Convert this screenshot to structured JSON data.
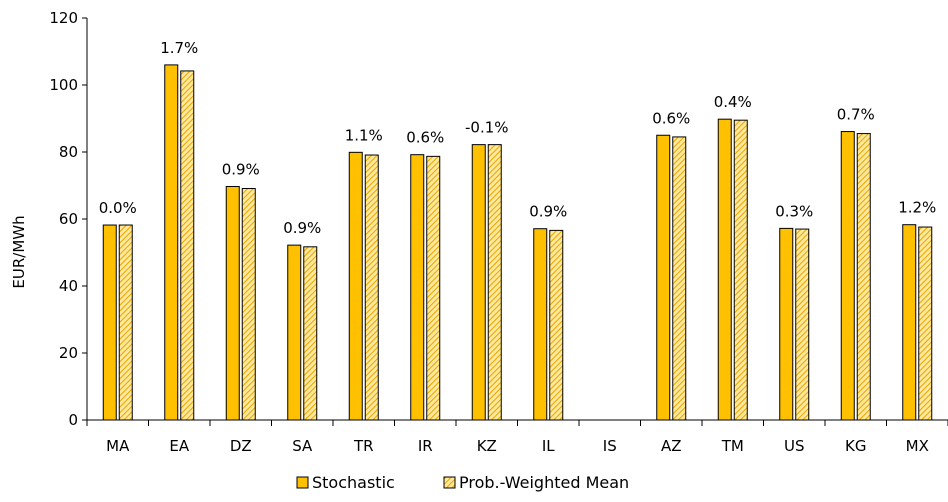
{
  "chart_data": {
    "type": "bar",
    "title": "",
    "xlabel": "",
    "ylabel": "EUR/MWh",
    "ylim": [
      0,
      120
    ],
    "yticks": [
      0,
      20,
      40,
      60,
      80,
      100,
      120
    ],
    "grid": false,
    "legend_position": "bottom",
    "categories": [
      "MA",
      "EA",
      "DZ",
      "SA",
      "TR",
      "IR",
      "KZ",
      "IL",
      "IS",
      "AZ",
      "TM",
      "US",
      "KG",
      "MX"
    ],
    "series": [
      {
        "name": "Stochastic",
        "color": "#FFC000",
        "pattern": "solid",
        "values": [
          58.2,
          106.0,
          69.7,
          52.2,
          79.9,
          79.2,
          82.2,
          57.1,
          null,
          85.0,
          89.8,
          57.2,
          86.1,
          58.3
        ]
      },
      {
        "name": "Prob.-Weighted Mean",
        "color": "#FFC000",
        "pattern": "hatched",
        "values": [
          58.2,
          104.2,
          69.1,
          51.7,
          79.1,
          78.7,
          82.2,
          56.6,
          null,
          84.5,
          89.5,
          57.0,
          85.5,
          57.6
        ]
      }
    ],
    "data_labels": [
      "0.0%",
      "1.7%",
      "0.9%",
      "0.9%",
      "1.1%",
      "0.6%",
      "-0.1%",
      "0.9%",
      "",
      "0.6%",
      "0.4%",
      "0.3%",
      "0.7%",
      "1.2%"
    ]
  }
}
